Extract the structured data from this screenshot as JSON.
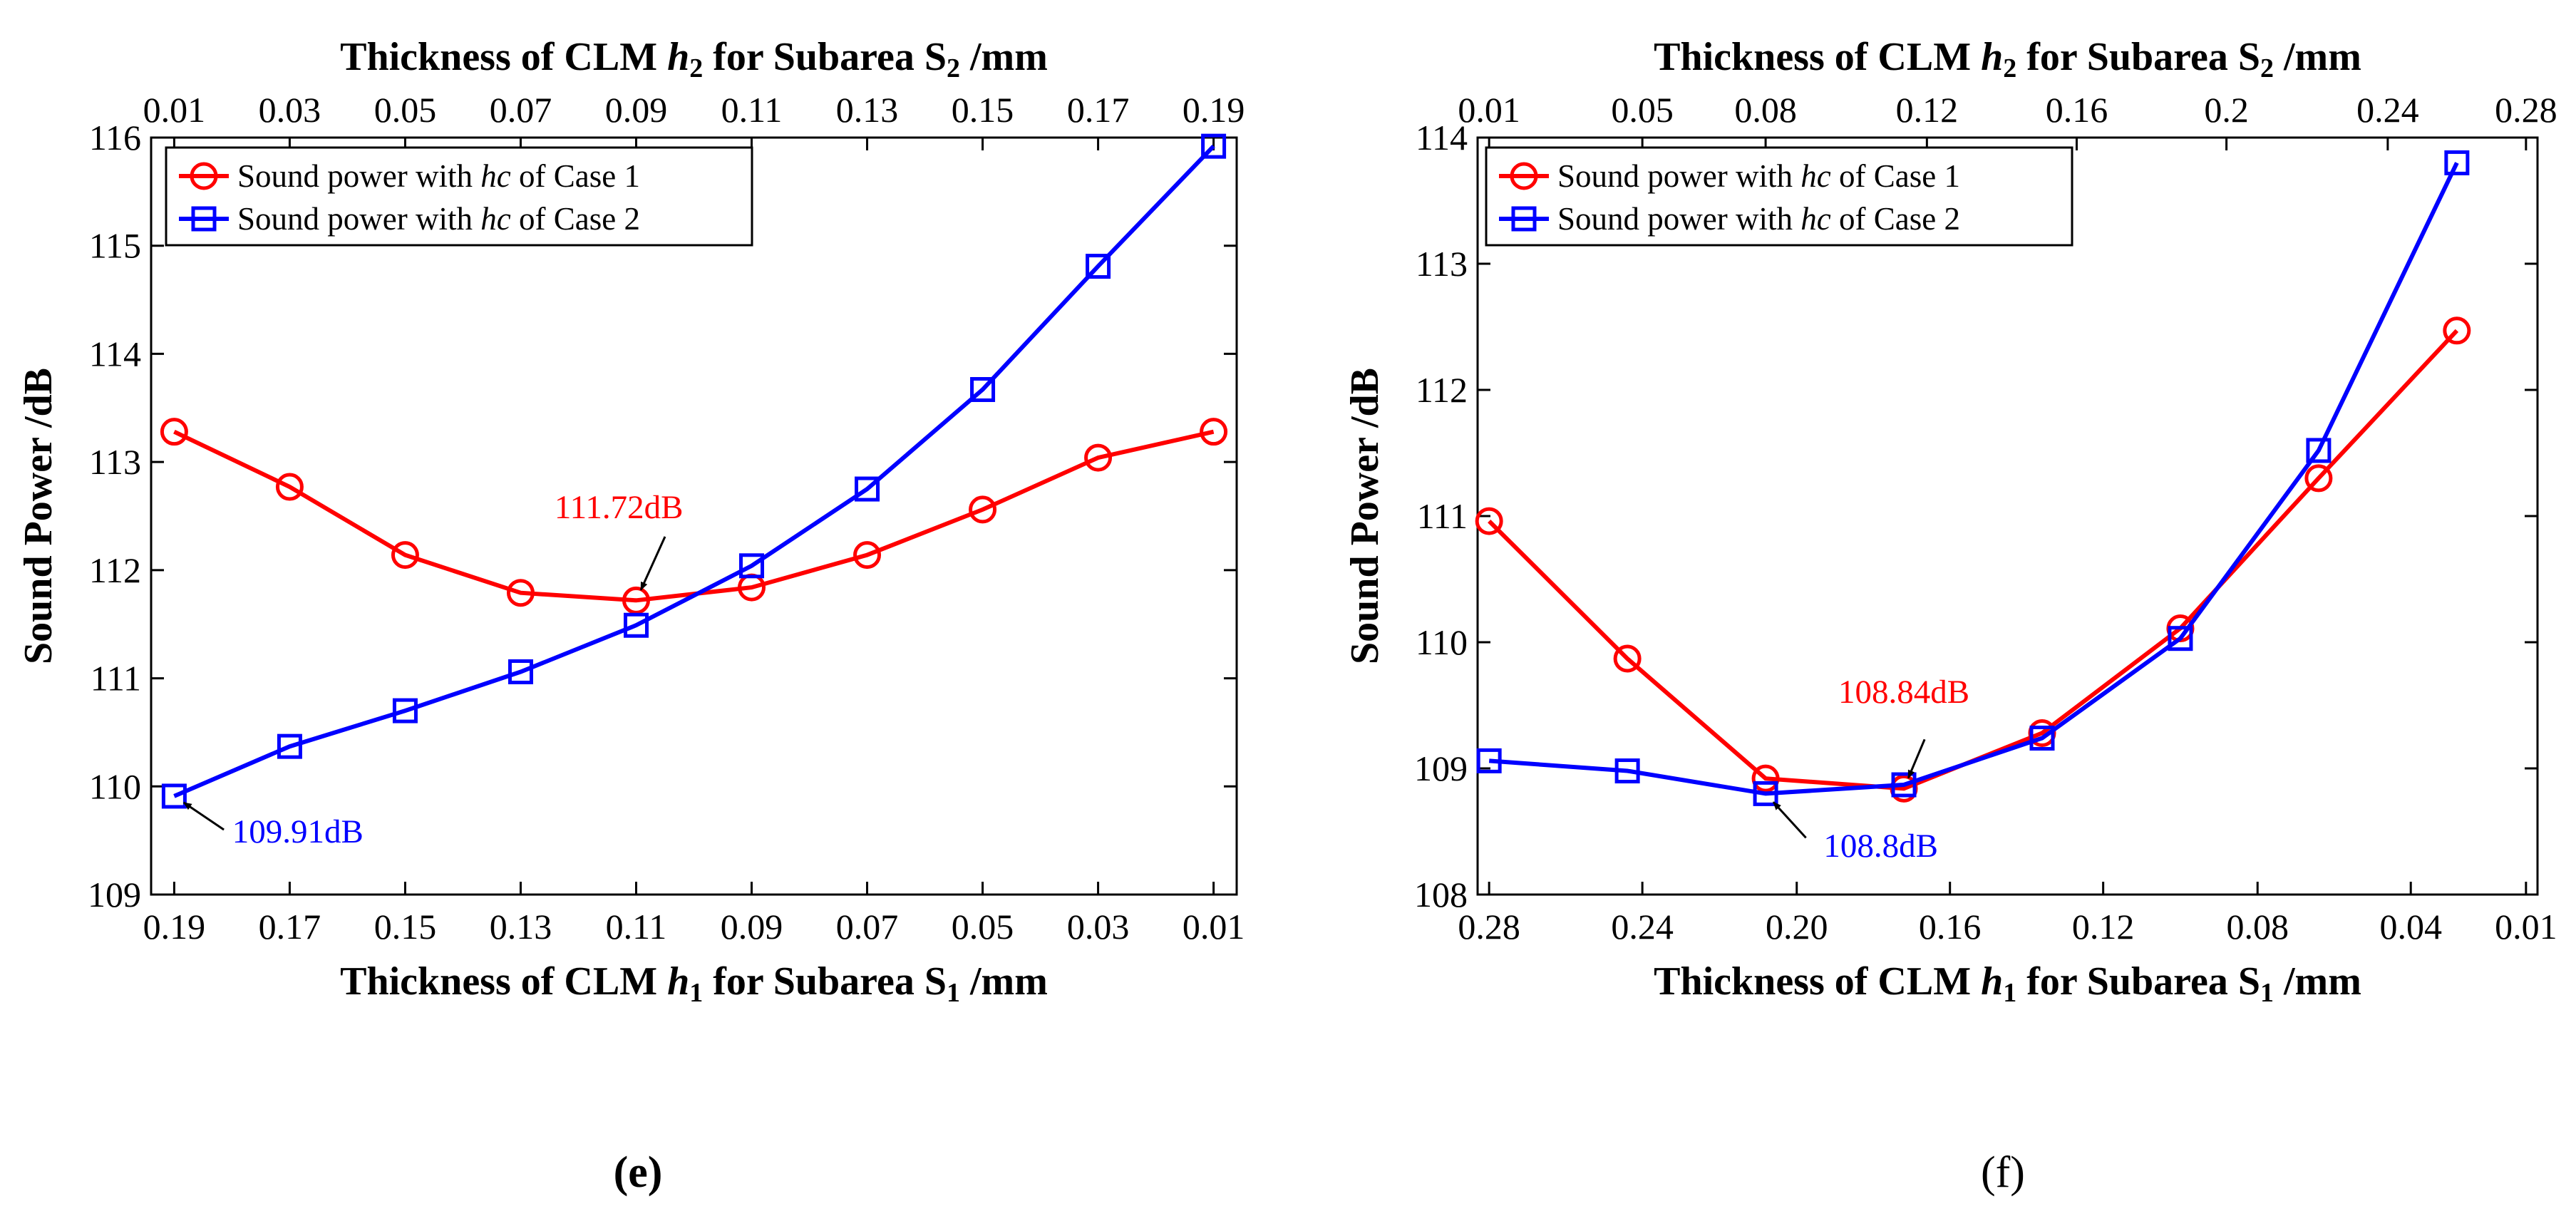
{
  "chart_data": [
    {
      "type": "line",
      "panel_label": "(e)",
      "title": "",
      "xlabel": {
        "prefix": "Thickness of CLM ",
        "var": "h",
        "var_sub": "1",
        "mid": " for Subarea S",
        "sub": "1",
        "suffix": " /mm"
      },
      "x2label": {
        "prefix": "Thickness of CLM ",
        "var": "h",
        "var_sub": "2",
        "mid": " for Subarea S",
        "sub": "2",
        "suffix": " /mm"
      },
      "ylabel": "Sound Power /dB",
      "x_ticks": [
        "0.19",
        "0.17",
        "0.15",
        "0.13",
        "0.11",
        "0.09",
        "0.07",
        "0.05",
        "0.03",
        "0.01"
      ],
      "x2_ticks": [
        "0.01",
        "0.03",
        "0.05",
        "0.07",
        "0.09",
        "0.11",
        "0.13",
        "0.15",
        "0.17",
        "0.19"
      ],
      "xlim": [
        -0.2,
        9.2
      ],
      "ylim": [
        109,
        116
      ],
      "y_ticks": [
        109,
        110,
        111,
        112,
        113,
        114,
        115,
        116
      ],
      "legend_position": "top-left",
      "series": [
        {
          "name": "Sound power with hc of Case 1",
          "label_pre": "Sound power with ",
          "label_var": "hc",
          "label_post": " of Case 1",
          "color": "#ff0000",
          "marker": "circle",
          "x": [
            0,
            1,
            2,
            3,
            4,
            5,
            6,
            7,
            8,
            9
          ],
          "values": [
            113.28,
            112.77,
            112.14,
            111.79,
            111.72,
            111.84,
            112.14,
            112.56,
            113.04,
            113.28
          ]
        },
        {
          "name": "Sound power with hc of Case 2",
          "label_pre": "Sound power with ",
          "label_var": "hc",
          "label_post": " of Case 2",
          "color": "#0000ff",
          "marker": "square",
          "x": [
            0,
            1,
            2,
            3,
            4,
            5,
            6,
            7,
            8,
            9
          ],
          "values": [
            109.91,
            110.37,
            110.7,
            111.06,
            111.49,
            112.04,
            112.75,
            113.67,
            114.81,
            115.92
          ]
        }
      ],
      "annotations": [
        {
          "text": "111.72dB",
          "color": "#ff0000",
          "x": 4,
          "y": 111.72,
          "text_x": 3.85,
          "text_y": 112.48,
          "arrow_from_x": 4.25,
          "arrow_from_y": 112.31
        },
        {
          "text": "109.91dB",
          "color": "#0000ff",
          "x": 0,
          "y": 109.91,
          "text_x": 1.07,
          "text_y": 109.48,
          "arrow_from_x": 0.43,
          "arrow_from_y": 109.6
        }
      ]
    },
    {
      "type": "line",
      "panel_label": "(f)",
      "title": "",
      "xlabel": {
        "prefix": "Thickness of CLM ",
        "var": "h",
        "var_sub": "1",
        "mid": " for Subarea S",
        "sub": "1",
        "suffix": " /mm"
      },
      "x2label": {
        "prefix": "Thickness of CLM ",
        "var": "h",
        "var_sub": "2",
        "mid": " for Subarea S",
        "sub": "2",
        "suffix": " /mm"
      },
      "ylabel": "Sound Power /dB",
      "x_ticks": [
        "0.28",
        "0.24",
        "0.20",
        "0.16",
        "0.12",
        "0.08",
        "0.04",
        "0.01"
      ],
      "x_tick_pos": [
        0,
        1.33,
        2.67,
        4.0,
        5.33,
        6.67,
        8.0,
        9.0
      ],
      "x2_ticks": [
        "0.01",
        "0.05",
        "0.08",
        "0.12",
        "0.16",
        "0.2",
        "0.24",
        "0.28"
      ],
      "x2_tick_pos": [
        0,
        1.33,
        2.4,
        3.8,
        5.1,
        6.4,
        7.8,
        9.0
      ],
      "xlim": [
        -0.1,
        9.1
      ],
      "ylim": [
        108,
        114
      ],
      "y_ticks": [
        108,
        109,
        110,
        111,
        112,
        113,
        114
      ],
      "legend_position": "top-left",
      "series": [
        {
          "name": "Sound power with hc of Case 1",
          "label_pre": "Sound power with ",
          "label_var": "hc",
          "label_post": " of Case 1",
          "color": "#ff0000",
          "marker": "circle",
          "x": [
            0,
            1.2,
            2.4,
            3.6,
            4.8,
            6.0,
            7.2,
            8.4
          ],
          "values": [
            110.96,
            109.87,
            108.92,
            108.84,
            109.28,
            110.11,
            111.3,
            112.47
          ]
        },
        {
          "name": "Sound power with hc of Case 2",
          "label_pre": "Sound power with ",
          "label_var": "hc",
          "label_post": " of Case 2",
          "color": "#0000ff",
          "marker": "square",
          "x": [
            0,
            1.2,
            2.4,
            3.6,
            4.8,
            6.0,
            7.2,
            8.4
          ],
          "values": [
            109.06,
            108.98,
            108.8,
            108.87,
            109.24,
            110.03,
            111.52,
            113.8
          ]
        }
      ],
      "annotations": [
        {
          "text": "108.84dB",
          "color": "#ff0000",
          "x": 3.6,
          "y": 108.84,
          "text_x": 3.6,
          "text_y": 109.52,
          "arrow_from_x": 3.78,
          "arrow_from_y": 109.23
        },
        {
          "text": "108.8dB",
          "color": "#0000ff",
          "x": 2.4,
          "y": 108.8,
          "text_x": 3.4,
          "text_y": 108.3,
          "arrow_from_x": 2.75,
          "arrow_from_y": 108.45
        }
      ]
    }
  ]
}
